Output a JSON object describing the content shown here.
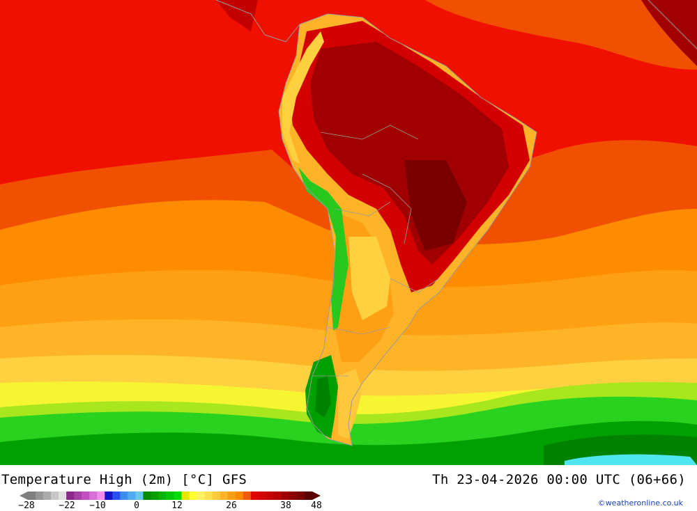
{
  "footer": {
    "title": "Temperature High (2m) [°C] GFS",
    "datetime": "Th 23-04-2026 00:00 UTC (06+66)",
    "credit": "©weatheronline.co.uk"
  },
  "legend": {
    "colors": [
      "#7f7f7f",
      "#959595",
      "#ababab",
      "#c8c8c8",
      "#e0e0e0",
      "#8b2a8b",
      "#a53fa5",
      "#c050c0",
      "#d870d8",
      "#f08cf0",
      "#1414c8",
      "#2850f0",
      "#3c8cf0",
      "#50aaf0",
      "#64c8f0",
      "#008c00",
      "#00a000",
      "#00b400",
      "#00c800",
      "#00dc00",
      "#e6e600",
      "#ffff32",
      "#fff064",
      "#ffe050",
      "#ffc83c",
      "#ffb428",
      "#ffa014",
      "#ff8c00",
      "#f05a00",
      "#e10000",
      "#d20000",
      "#c30000",
      "#b40000",
      "#a00000",
      "#8c0000",
      "#780000",
      "#5a0000"
    ],
    "tick_labels": [
      "−28",
      "−22",
      "−10",
      "0",
      "12",
      "26",
      "38",
      "48"
    ]
  }
}
